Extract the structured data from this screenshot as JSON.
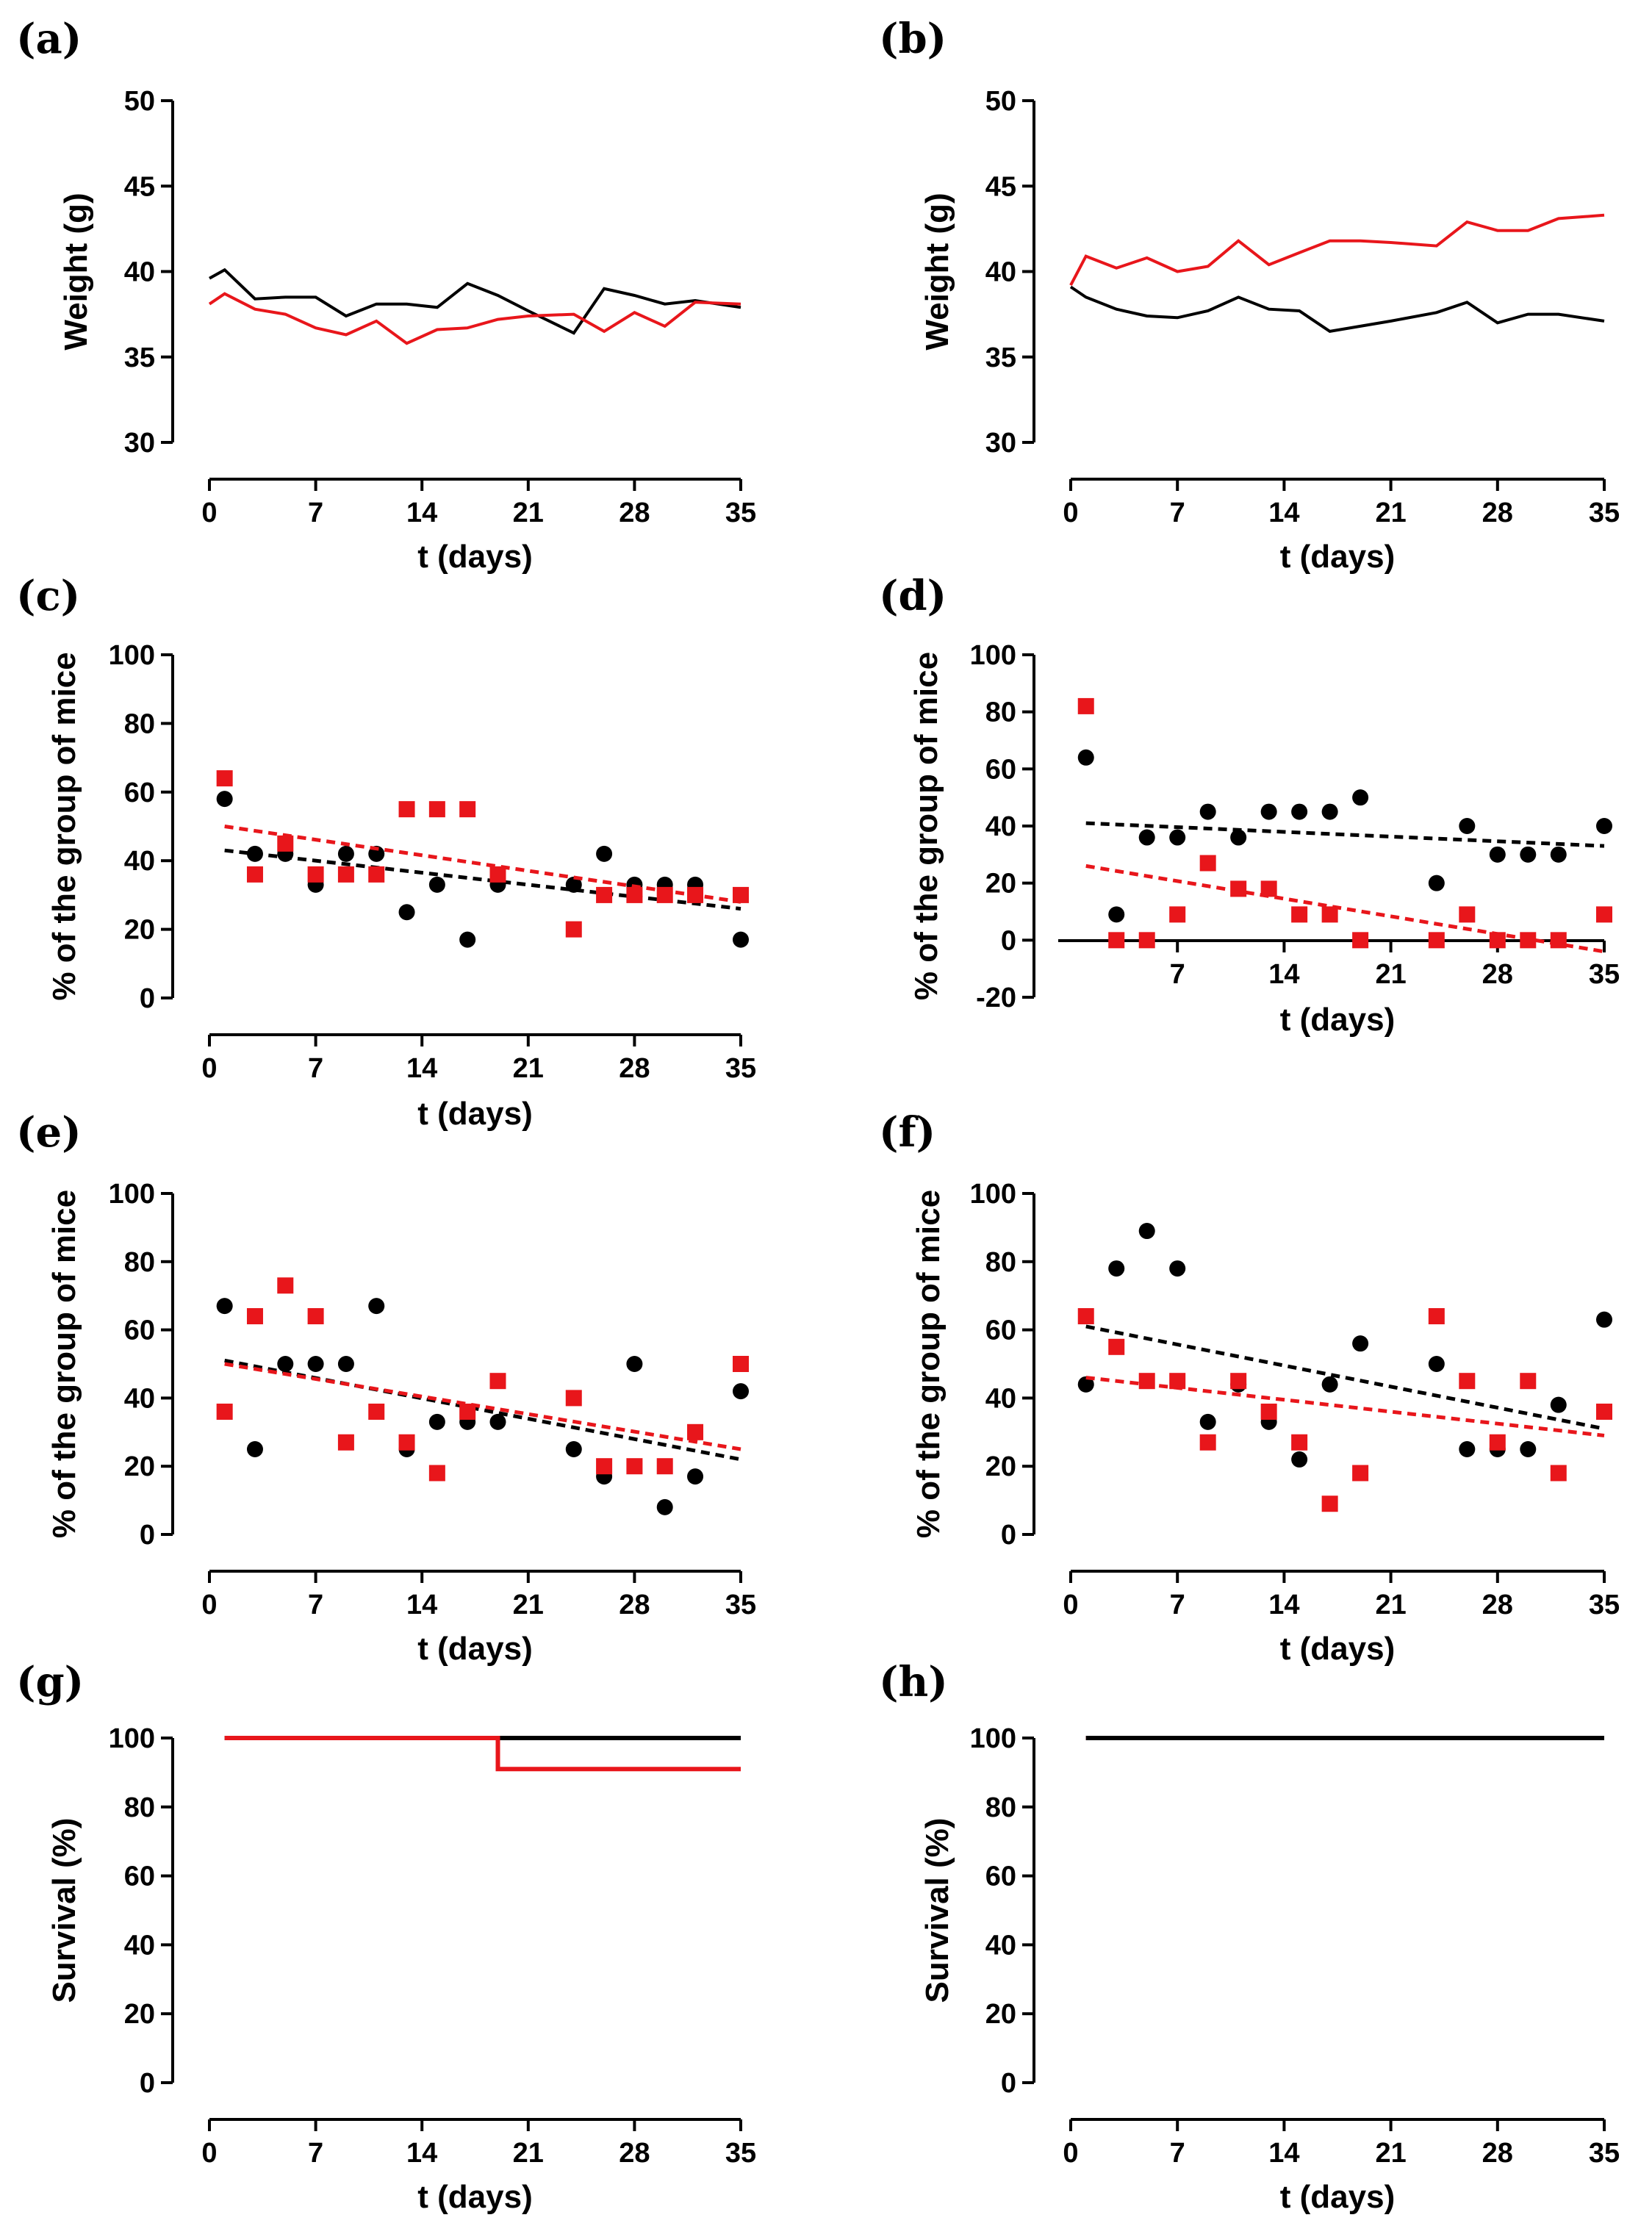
{
  "chart_data": [
    {
      "panel": "(a)",
      "type": "line",
      "xlabel": "t (days)",
      "ylabel": "Weight (g)",
      "xlim": [
        0,
        35
      ],
      "ylim": [
        30,
        50
      ],
      "xticks": [
        0,
        7,
        14,
        21,
        28,
        35
      ],
      "yticks": [
        30,
        35,
        40,
        45,
        50
      ],
      "series": [
        {
          "name": "black",
          "color": "#000000",
          "style": "line",
          "x": [
            0,
            1,
            3,
            5,
            7,
            9,
            11,
            13,
            15,
            17,
            19,
            21,
            24,
            26,
            28,
            30,
            32,
            35
          ],
          "y": [
            39.6,
            40.1,
            38.4,
            38.5,
            38.5,
            37.4,
            38.1,
            38.1,
            37.9,
            39.3,
            38.6,
            37.7,
            36.4,
            39.0,
            38.6,
            38.1,
            38.3,
            37.9
          ]
        },
        {
          "name": "red",
          "color": "#e8161b",
          "style": "line",
          "x": [
            0,
            1,
            3,
            5,
            7,
            9,
            11,
            13,
            15,
            17,
            19,
            21,
            24,
            26,
            28,
            30,
            32,
            35
          ],
          "y": [
            38.1,
            38.7,
            37.8,
            37.5,
            36.7,
            36.3,
            37.1,
            35.8,
            36.6,
            36.7,
            37.2,
            37.4,
            37.5,
            36.5,
            37.6,
            36.8,
            38.2,
            38.1
          ]
        }
      ]
    },
    {
      "panel": "(b)",
      "type": "line",
      "xlabel": "t (days)",
      "ylabel": "Weight (g)",
      "xlim": [
        0,
        35
      ],
      "ylim": [
        30,
        50
      ],
      "xticks": [
        0,
        7,
        14,
        21,
        28,
        35
      ],
      "yticks": [
        30,
        35,
        40,
        45,
        50
      ],
      "series": [
        {
          "name": "black",
          "color": "#000000",
          "style": "line",
          "x": [
            0,
            1,
            3,
            5,
            7,
            9,
            11,
            13,
            15,
            17,
            19,
            21,
            24,
            26,
            28,
            30,
            32,
            35
          ],
          "y": [
            39.1,
            38.5,
            37.8,
            37.4,
            37.3,
            37.7,
            38.5,
            37.8,
            37.7,
            36.5,
            36.8,
            37.1,
            37.6,
            38.2,
            37.0,
            37.5,
            37.5,
            37.1
          ]
        },
        {
          "name": "red",
          "color": "#e8161b",
          "style": "line",
          "x": [
            0,
            1,
            3,
            5,
            7,
            9,
            11,
            13,
            15,
            17,
            19,
            21,
            24,
            26,
            28,
            30,
            32,
            35
          ],
          "y": [
            39.2,
            40.9,
            40.2,
            40.8,
            40.0,
            40.3,
            41.8,
            40.4,
            41.1,
            41.8,
            41.8,
            41.7,
            41.5,
            42.9,
            42.4,
            42.4,
            43.1,
            43.3
          ]
        }
      ]
    },
    {
      "panel": "(c)",
      "type": "scatter",
      "xlabel": "t (days)",
      "ylabel": "% of the group of mice",
      "xlim": [
        0,
        35
      ],
      "ylim": [
        0,
        100
      ],
      "xticks": [
        0,
        7,
        14,
        21,
        28,
        35
      ],
      "yticks": [
        0,
        20,
        40,
        60,
        80,
        100
      ],
      "series": [
        {
          "name": "black",
          "color": "#000000",
          "marker": "circle",
          "x": [
            1,
            3,
            5,
            7,
            9,
            11,
            13,
            15,
            17,
            19,
            24,
            26,
            28,
            30,
            32,
            35
          ],
          "y": [
            58,
            42,
            42,
            33,
            42,
            42,
            25,
            33,
            17,
            33,
            33,
            42,
            33,
            33,
            33,
            17
          ],
          "fit": [
            43,
            26
          ]
        },
        {
          "name": "red",
          "color": "#e8161b",
          "marker": "square",
          "x": [
            1,
            3,
            5,
            7,
            9,
            11,
            13,
            15,
            17,
            19,
            24,
            26,
            28,
            30,
            32,
            35
          ],
          "y": [
            64,
            36,
            45,
            36,
            36,
            36,
            55,
            55,
            55,
            36,
            20,
            30,
            30,
            30,
            30,
            30
          ],
          "fit": [
            50,
            28
          ]
        }
      ]
    },
    {
      "panel": "(d)",
      "type": "scatter",
      "xlabel": "t (days)",
      "ylabel": "% of the group of mice",
      "xlim": [
        0,
        35
      ],
      "ylim": [
        -20,
        100
      ],
      "xticks": [
        7,
        14,
        21,
        28,
        35
      ],
      "yticks": [
        -20,
        0,
        20,
        40,
        60,
        80,
        100
      ],
      "series": [
        {
          "name": "black",
          "color": "#000000",
          "marker": "circle",
          "x": [
            1,
            3,
            5,
            7,
            9,
            11,
            13,
            15,
            17,
            19,
            24,
            26,
            28,
            30,
            32,
            35
          ],
          "y": [
            64,
            9,
            36,
            36,
            45,
            36,
            45,
            45,
            45,
            50,
            20,
            40,
            30,
            30,
            30,
            40
          ],
          "fit": [
            41,
            33
          ]
        },
        {
          "name": "red",
          "color": "#e8161b",
          "marker": "square",
          "x": [
            1,
            3,
            5,
            7,
            9,
            11,
            13,
            15,
            17,
            19,
            24,
            26,
            28,
            30,
            32,
            35
          ],
          "y": [
            82,
            0,
            0,
            9,
            27,
            18,
            18,
            9,
            9,
            0,
            0,
            9,
            0,
            0,
            0,
            9
          ],
          "fit": [
            26,
            -4
          ]
        }
      ]
    },
    {
      "panel": "(e)",
      "type": "scatter",
      "xlabel": "t (days)",
      "ylabel": "% of the group of mice",
      "xlim": [
        0,
        35
      ],
      "ylim": [
        0,
        100
      ],
      "xticks": [
        0,
        7,
        14,
        21,
        28,
        35
      ],
      "yticks": [
        0,
        20,
        40,
        60,
        80,
        100
      ],
      "series": [
        {
          "name": "black",
          "color": "#000000",
          "marker": "circle",
          "x": [
            1,
            3,
            5,
            7,
            9,
            11,
            13,
            15,
            17,
            19,
            24,
            26,
            28,
            30,
            32,
            35
          ],
          "y": [
            67,
            25,
            50,
            50,
            50,
            67,
            25,
            33,
            33,
            33,
            25,
            17,
            50,
            8,
            17,
            42
          ],
          "fit": [
            51,
            22
          ]
        },
        {
          "name": "red",
          "color": "#e8161b",
          "marker": "square",
          "x": [
            1,
            3,
            5,
            7,
            9,
            11,
            13,
            15,
            17,
            19,
            24,
            26,
            28,
            30,
            32,
            35
          ],
          "y": [
            36,
            64,
            73,
            64,
            27,
            36,
            27,
            18,
            36,
            45,
            40,
            20,
            20,
            20,
            30,
            50
          ],
          "fit": [
            50,
            25
          ]
        }
      ]
    },
    {
      "panel": "(f)",
      "type": "scatter",
      "xlabel": "t (days)",
      "ylabel": "% of the group of mice",
      "xlim": [
        0,
        35
      ],
      "ylim": [
        0,
        100
      ],
      "xticks": [
        0,
        7,
        14,
        21,
        28,
        35
      ],
      "yticks": [
        0,
        20,
        40,
        60,
        80,
        100
      ],
      "series": [
        {
          "name": "black",
          "color": "#000000",
          "marker": "circle",
          "x": [
            1,
            3,
            5,
            7,
            9,
            11,
            13,
            15,
            17,
            19,
            24,
            26,
            28,
            30,
            32,
            35
          ],
          "y": [
            44,
            78,
            89,
            78,
            33,
            44,
            33,
            22,
            44,
            56,
            50,
            25,
            25,
            25,
            38,
            63
          ],
          "fit": [
            61,
            31
          ]
        },
        {
          "name": "red",
          "color": "#e8161b",
          "marker": "square",
          "x": [
            1,
            3,
            5,
            7,
            9,
            11,
            13,
            15,
            17,
            19,
            24,
            26,
            28,
            30,
            32,
            35
          ],
          "y": [
            64,
            55,
            45,
            45,
            27,
            45,
            36,
            27,
            9,
            18,
            64,
            45,
            27,
            45,
            18,
            36
          ],
          "fit": [
            46,
            29
          ]
        }
      ]
    },
    {
      "panel": "(g)",
      "type": "line",
      "xlabel": "t (days)",
      "ylabel": "Survival (%)",
      "xlim": [
        0,
        35
      ],
      "ylim": [
        0,
        100
      ],
      "xticks": [
        0,
        7,
        14,
        21,
        28,
        35
      ],
      "yticks": [
        0,
        20,
        40,
        60,
        80,
        100
      ],
      "series": [
        {
          "name": "black",
          "color": "#000000",
          "style": "step",
          "x": [
            1,
            35
          ],
          "y": [
            100,
            100
          ]
        },
        {
          "name": "red",
          "color": "#e8161b",
          "style": "step",
          "x": [
            1,
            19,
            19,
            35
          ],
          "y": [
            100,
            100,
            91,
            91
          ]
        }
      ]
    },
    {
      "panel": "(h)",
      "type": "line",
      "xlabel": "t (days)",
      "ylabel": "Survival (%)",
      "xlim": [
        0,
        35
      ],
      "ylim": [
        0,
        100
      ],
      "xticks": [
        0,
        7,
        14,
        21,
        28,
        35
      ],
      "yticks": [
        0,
        20,
        40,
        60,
        80,
        100
      ],
      "series": [
        {
          "name": "red",
          "color": "#e8161b",
          "style": "step",
          "x": [
            1,
            35
          ],
          "y": [
            100,
            100
          ]
        },
        {
          "name": "black",
          "color": "#000000",
          "style": "step",
          "x": [
            1,
            35
          ],
          "y": [
            100,
            100
          ]
        }
      ]
    }
  ]
}
